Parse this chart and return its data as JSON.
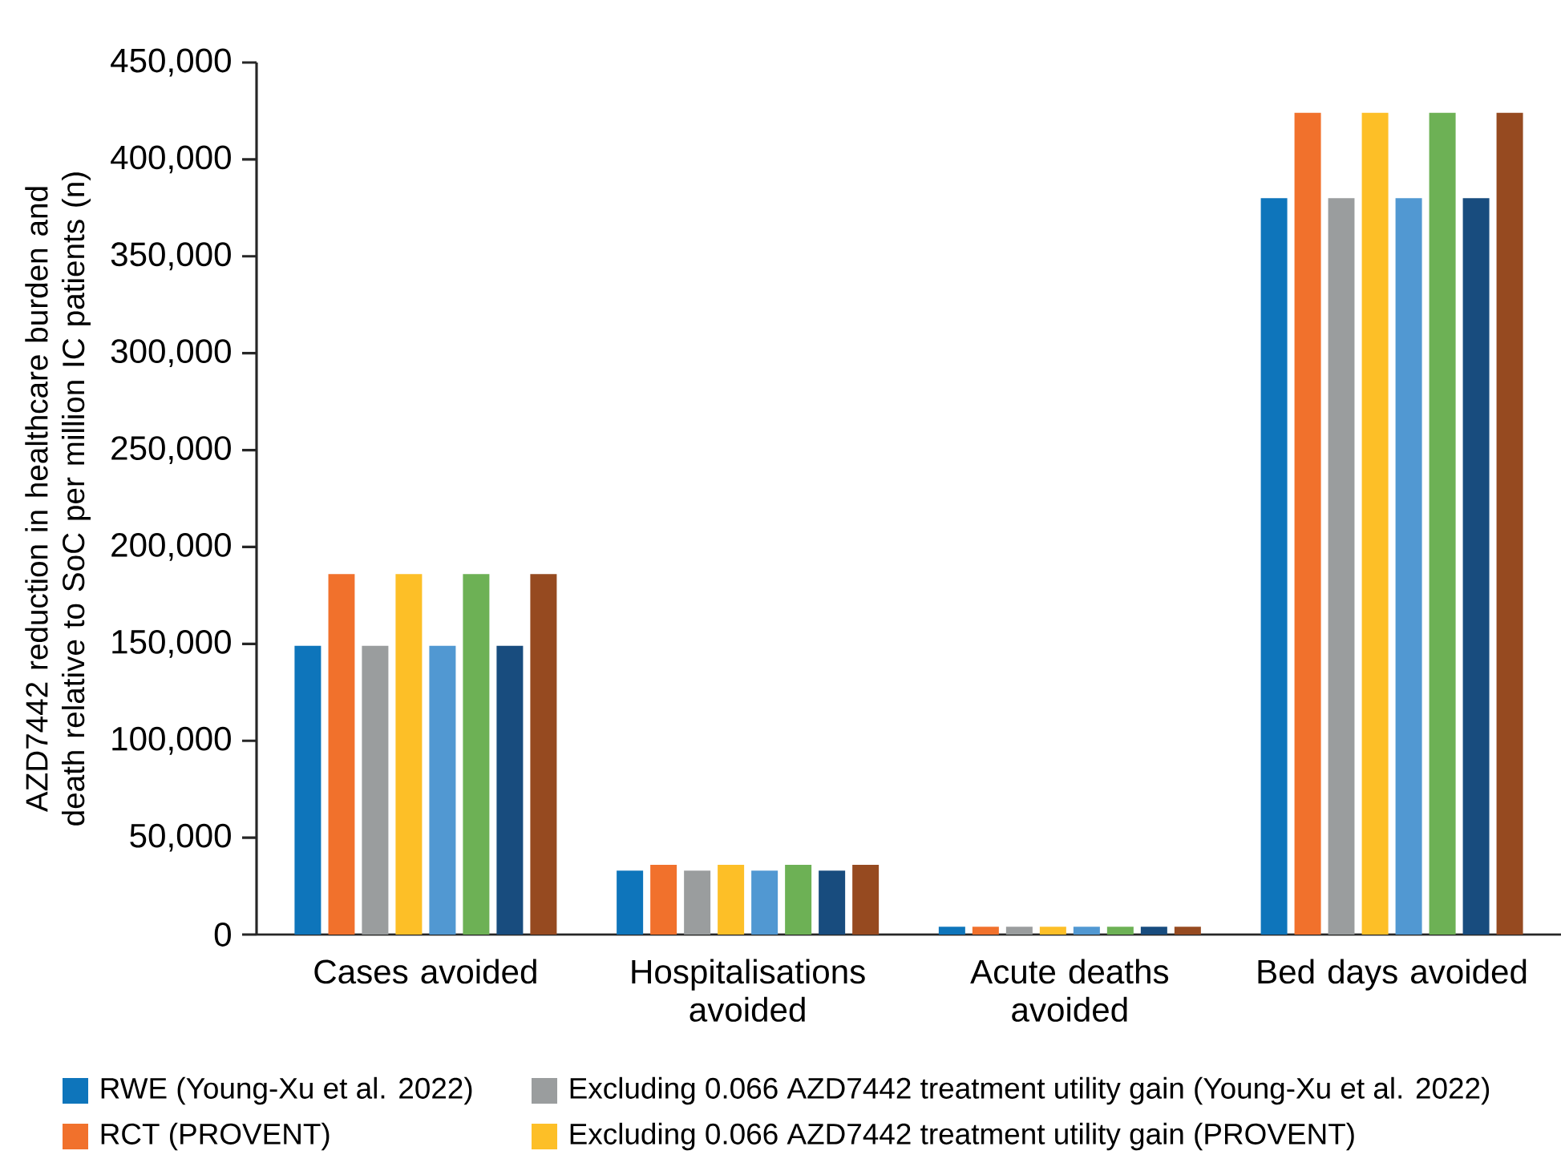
{
  "chart_data": {
    "type": "bar",
    "ylabel": "AZD7442 reduction in healthcare burden and death relative to SoC per million IC patients (n)",
    "categories": [
      "Cases avoided",
      "Hospitalisations avoided",
      "Acute deaths avoided",
      "Bed days avoided"
    ],
    "series": [
      {
        "name": "RWE (Young-Xu et al. 2022)",
        "color": "#0e75bb",
        "values": [
          149000,
          33000,
          4000,
          380000
        ]
      },
      {
        "name": "RCT (PROVENT)",
        "color": "#f1712c",
        "values": [
          186000,
          36000,
          4000,
          424000
        ]
      },
      {
        "name": "Excluding 0.066 AZD7442 treatment utility gain (Young-Xu et al. 2022)",
        "color": "#9a9d9e",
        "values": [
          149000,
          33000,
          4000,
          380000
        ]
      },
      {
        "name": "Excluding 0.066 AZD7442 treatment utility gain (PROVENT)",
        "color": "#fdbf27",
        "values": [
          186000,
          36000,
          4000,
          424000
        ]
      },
      {
        "color": "#5198d2",
        "values": [
          149000,
          33000,
          4000,
          380000
        ]
      },
      {
        "color": "#6db155",
        "values": [
          186000,
          36000,
          4000,
          424000
        ]
      },
      {
        "color": "#184c7e",
        "values": [
          149000,
          33000,
          4000,
          380000
        ]
      },
      {
        "color": "#964a20",
        "values": [
          186000,
          36000,
          4000,
          424000
        ]
      }
    ],
    "ylim": [
      0,
      450000
    ],
    "yticks": [
      0,
      {
        "value": 50000,
        "label": "50,000"
      },
      {
        "value": 100000,
        "label": "100,000"
      },
      {
        "value": 150000,
        "label": "150,000"
      },
      {
        "value": 200000,
        "label": "200,000"
      },
      {
        "value": 250000,
        "label": "250,000"
      },
      {
        "value": 300000,
        "label": "300,000"
      },
      {
        "value": 350000,
        "label": "350,000"
      },
      {
        "value": 400000,
        "label": "400,000"
      },
      {
        "value": 450000,
        "label": "450,000"
      }
    ],
    "grid": false,
    "legend": "bottom"
  }
}
